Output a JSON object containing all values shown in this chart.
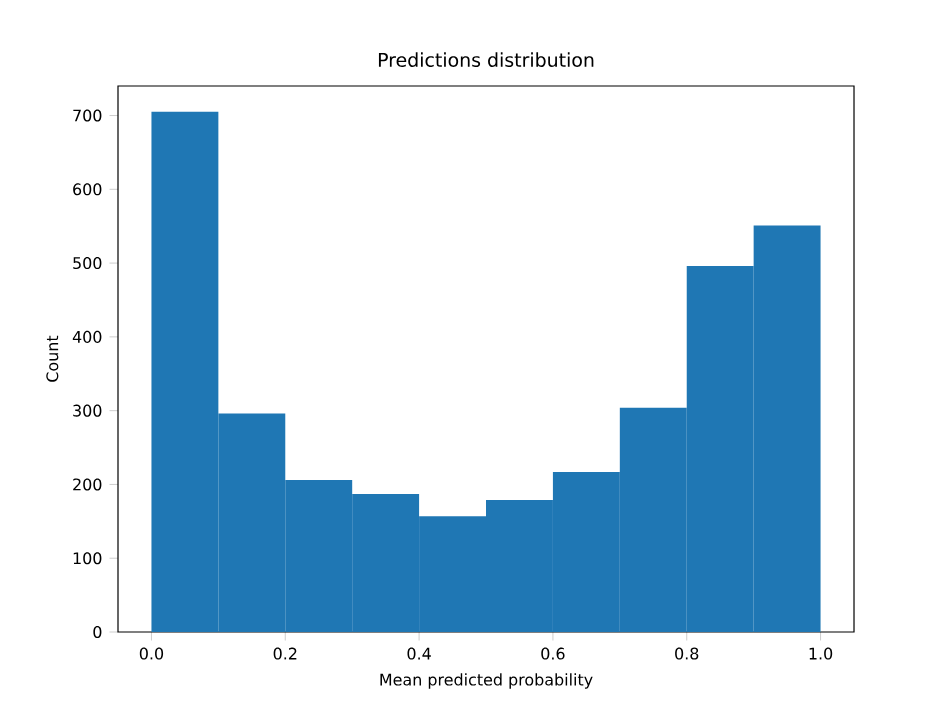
{
  "chart_data": {
    "type": "histogram",
    "title": "Predictions distribution",
    "xlabel": "Mean predicted probability",
    "ylabel": "Count",
    "bins": [
      0.0,
      0.1,
      0.2,
      0.3,
      0.4,
      0.5,
      0.6,
      0.7,
      0.8,
      0.9,
      1.0
    ],
    "values": [
      705,
      296,
      206,
      187,
      157,
      179,
      217,
      304,
      496,
      551
    ],
    "color": "#1f77b4",
    "xlim": [
      -0.05,
      1.05
    ],
    "ylim": [
      0,
      740
    ],
    "xticks": [
      {
        "value": 0.0,
        "label": "0.0"
      },
      {
        "value": 0.2,
        "label": "0.2"
      },
      {
        "value": 0.4,
        "label": "0.4"
      },
      {
        "value": 0.6,
        "label": "0.6"
      },
      {
        "value": 0.8,
        "label": "0.8"
      },
      {
        "value": 1.0,
        "label": "1.0"
      }
    ],
    "yticks": [
      0,
      100,
      200,
      300,
      400,
      500,
      600,
      700
    ],
    "grid": false
  }
}
